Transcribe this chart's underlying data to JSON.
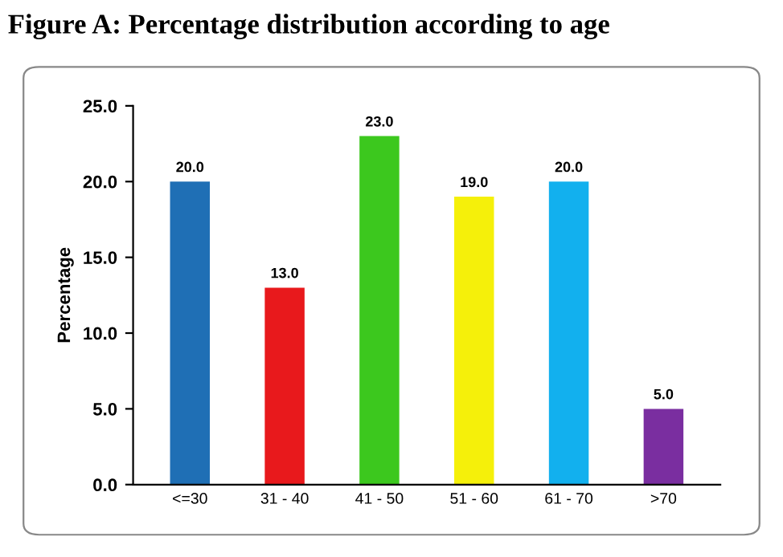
{
  "chart_data": {
    "type": "bar",
    "title": "Figure A: Percentage distribution according to age",
    "ylabel": "Percentage",
    "categories": [
      "<=30",
      "31 - 40",
      "41 - 50",
      "51 - 60",
      "61 - 70",
      ">70"
    ],
    "values": [
      20,
      13,
      23,
      19,
      20,
      5
    ],
    "colors": [
      "#1f6fb5",
      "#e8191c",
      "#3cc81e",
      "#f5f00a",
      "#12b0ee",
      "#7a2ea0"
    ],
    "value_labels": [
      "20.0",
      "13.0",
      "23.0",
      "19.0",
      "20.0",
      "5.0"
    ],
    "ylim": [
      0,
      25
    ],
    "yticks": [
      {
        "value": 0,
        "label": "0.0"
      },
      {
        "value": 5,
        "label": "5.0"
      },
      {
        "value": 10,
        "label": "10.0"
      },
      {
        "value": 15,
        "label": "15.0"
      },
      {
        "value": 20,
        "label": "20.0"
      },
      {
        "value": 25,
        "label": "25.0"
      }
    ],
    "grid": false
  }
}
